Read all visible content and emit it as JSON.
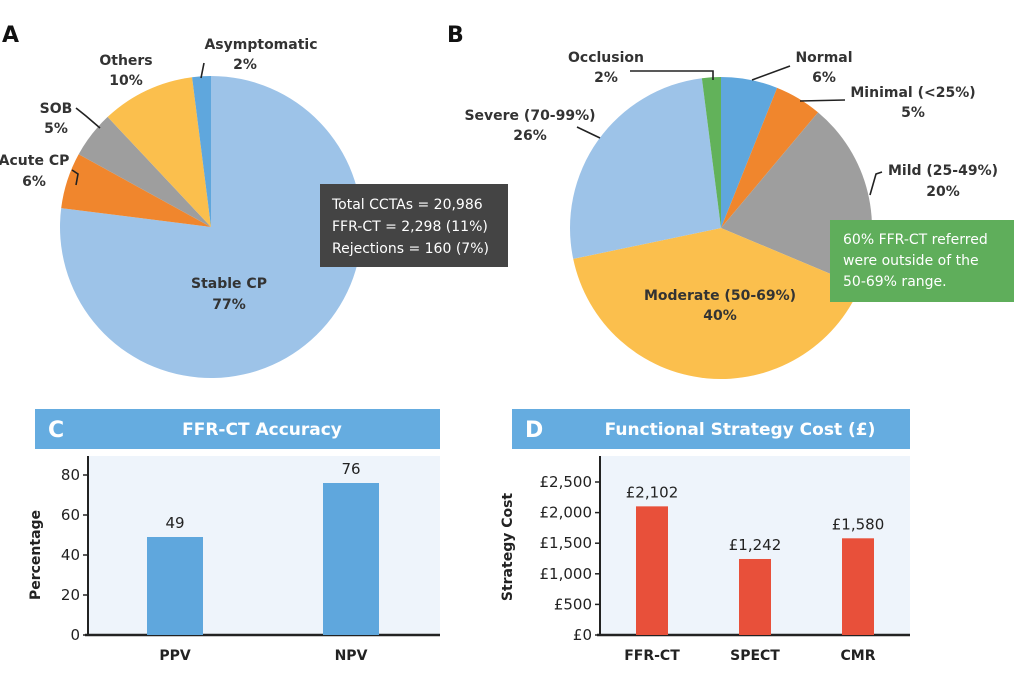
{
  "chart_data": [
    {
      "panel": "A",
      "type": "pie",
      "start": "top, clockwise",
      "slices": [
        {
          "label": "Stable CP",
          "pct_label": "77%",
          "value": 77,
          "color": "#9dc3e8"
        },
        {
          "label": "Acute CP",
          "pct_label": "6%",
          "value": 6,
          "color": "#f0862d"
        },
        {
          "label": "SOB",
          "pct_label": "5%",
          "value": 5,
          "color": "#9e9e9e"
        },
        {
          "label": "Others",
          "pct_label": "10%",
          "value": 10,
          "color": "#fbbf4d"
        },
        {
          "label": "Asymptomatic",
          "pct_label": "2%",
          "value": 2,
          "color": "#5fa7dd"
        }
      ],
      "annotation": {
        "lines": [
          "Total CCTAs = 20,986",
          "FFR-CT = 2,298 (11%)",
          "Rejections = 160 (7%)"
        ],
        "color": "#444444"
      }
    },
    {
      "panel": "B",
      "type": "pie",
      "start": "top, clockwise",
      "slices": [
        {
          "label": "Normal",
          "pct_label": "6%",
          "value": 6,
          "color": "#5fa7dd"
        },
        {
          "label": "Minimal (<25%)",
          "pct_label": "5%",
          "value": 5,
          "color": "#f0862d"
        },
        {
          "label": "Mild (25-49%)",
          "pct_label": "20%",
          "value": 20,
          "color": "#9e9e9e"
        },
        {
          "label": "Moderate (50-69%)",
          "pct_label": "40%",
          "value": 40,
          "color": "#fbbf4d"
        },
        {
          "label": "Severe (70-99%)",
          "pct_label": "26%",
          "value": 26,
          "color": "#9dc3e8"
        },
        {
          "label": "Occlusion",
          "pct_label": "2%",
          "value": 2,
          "color": "#62b25a"
        }
      ],
      "annotation": {
        "lines": [
          "60% FFR-CT referred",
          "were outside of the",
          "50-69% range."
        ],
        "color": "#5fae5b"
      }
    },
    {
      "panel": "C",
      "type": "bar",
      "title": "FFR-CT Accuracy",
      "categories": [
        "PPV",
        "NPV"
      ],
      "values": [
        49,
        76
      ],
      "value_labels": [
        "49",
        "76"
      ],
      "ylabel": "Percentage",
      "ylim": [
        0,
        80
      ],
      "yticks": [
        "0",
        "20",
        "40",
        "60",
        "80"
      ],
      "ytick_values": [
        0,
        20,
        40,
        60,
        80
      ],
      "bar_color": "#5fa7dd",
      "grid": false
    },
    {
      "panel": "D",
      "type": "bar",
      "title": "Functional Strategy Cost (£)",
      "categories": [
        "FFR-CT",
        "SPECT",
        "CMR"
      ],
      "values": [
        2102,
        1242,
        1580
      ],
      "value_labels": [
        "£2,102",
        "£1,242",
        "£1,580"
      ],
      "ylabel": "Strategy Cost",
      "ylim": [
        0,
        2500
      ],
      "yticks": [
        "£0",
        "£500",
        "£1,000",
        "£1,500",
        "£2,000",
        "£2,500"
      ],
      "ytick_values": [
        0,
        500,
        1000,
        1500,
        2000,
        2500
      ],
      "bar_color": "#e8503a",
      "grid": false
    }
  ],
  "colors": {
    "header": "#65ace0",
    "plot_bg": "#eef4fb"
  }
}
